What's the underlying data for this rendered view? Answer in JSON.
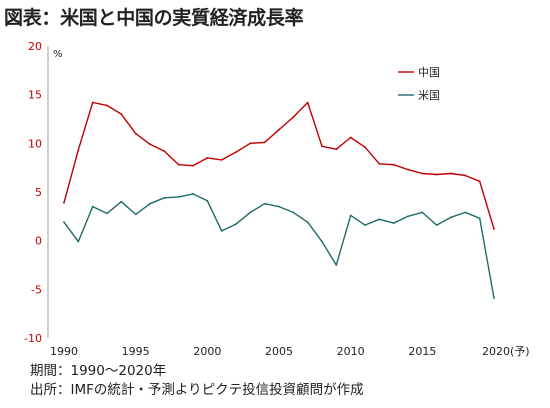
{
  "title": "図表：米国と中国の実質経済成長率",
  "notes": {
    "period": "期間：1990〜2020年",
    "source": "出所：IMFの統計・予測よりピクテ投信投資顧問が作成"
  },
  "chart_data": {
    "type": "line",
    "title": "図表：米国と中国の実質経済成長率",
    "unit": "%",
    "x": [
      1990,
      1991,
      1992,
      1993,
      1994,
      1995,
      1996,
      1997,
      1998,
      1999,
      2000,
      2001,
      2002,
      2003,
      2004,
      2005,
      2006,
      2007,
      2008,
      2009,
      2010,
      2011,
      2012,
      2013,
      2014,
      2015,
      2016,
      2017,
      2018,
      2019,
      2020
    ],
    "x_tick_labels": [
      "1990",
      "1995",
      "2000",
      "2005",
      "2010",
      "2015",
      "2020(予)"
    ],
    "x_tick_values": [
      1990,
      1995,
      2000,
      2005,
      2010,
      2015,
      2020
    ],
    "y_tick_labels": [
      "20",
      "15",
      "10",
      "5",
      "0",
      "-5",
      "-10"
    ],
    "y_tick_values": [
      20,
      15,
      10,
      5,
      0,
      -5,
      -10
    ],
    "ylim": [
      -10,
      20
    ],
    "legend_position": "top-right",
    "grid": false,
    "series": [
      {
        "name": "中国",
        "color": "#c00000",
        "values": [
          3.9,
          9.3,
          14.2,
          13.9,
          13.0,
          11.0,
          9.9,
          9.2,
          7.8,
          7.7,
          8.5,
          8.3,
          9.1,
          10.0,
          10.1,
          11.4,
          12.7,
          14.2,
          9.7,
          9.4,
          10.6,
          9.6,
          7.9,
          7.8,
          7.3,
          6.9,
          6.8,
          6.9,
          6.7,
          6.1,
          1.2
        ]
      },
      {
        "name": "米国",
        "color": "#1e6b6b",
        "values": [
          1.9,
          -0.1,
          3.5,
          2.8,
          4.0,
          2.7,
          3.8,
          4.4,
          4.5,
          4.8,
          4.1,
          1.0,
          1.7,
          2.9,
          3.8,
          3.5,
          2.9,
          1.9,
          -0.1,
          -2.5,
          2.6,
          1.6,
          2.2,
          1.8,
          2.5,
          2.9,
          1.6,
          2.4,
          2.9,
          2.3,
          -5.9
        ]
      }
    ]
  }
}
